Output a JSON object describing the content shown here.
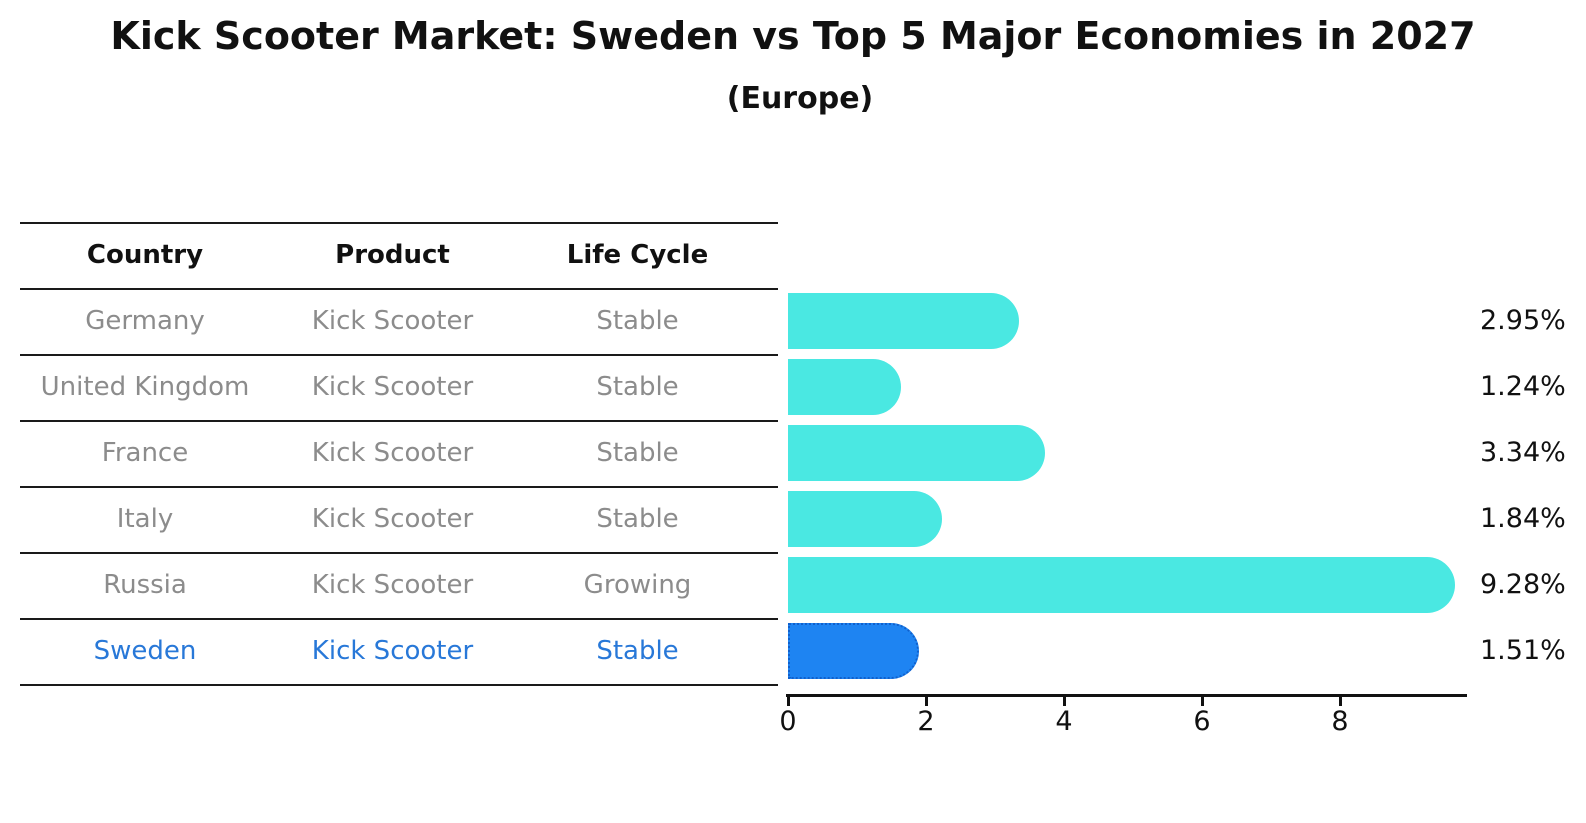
{
  "chart_data": {
    "type": "bar",
    "orientation": "horizontal",
    "title": "Kick Scooter Market: Sweden vs Top 5 Major Economies in 2027",
    "subtitle": "(Europe)",
    "categories": [
      "Germany",
      "United Kingdom",
      "France",
      "Italy",
      "Russia",
      "Sweden"
    ],
    "values": [
      2.95,
      1.24,
      3.34,
      1.84,
      9.28,
      1.51
    ],
    "value_labels": [
      "2.95%",
      "1.24%",
      "3.34%",
      "1.84%",
      "9.28%",
      "1.51%"
    ],
    "xlabel": "",
    "ylabel": "",
    "xlim": [
      0,
      9.8
    ],
    "xticks": [
      0,
      2,
      4,
      6,
      8
    ],
    "xtick_labels": [
      "0",
      "2",
      "4",
      "6",
      "8"
    ],
    "grid": false,
    "legend": false,
    "bar_color": "#4ae8e2",
    "highlight_index": 5,
    "highlight_bar_color": "#1e84f2",
    "highlight_border_color": "#1060cc",
    "axis_color": "#111111",
    "value_label_color": "#111111"
  },
  "table": {
    "headers": [
      "Country",
      "Product",
      "Life Cycle"
    ],
    "rows": [
      {
        "country": "Germany",
        "product": "Kick Scooter",
        "life_cycle": "Stable",
        "highlight": false
      },
      {
        "country": "United Kingdom",
        "product": "Kick Scooter",
        "life_cycle": "Stable",
        "highlight": false
      },
      {
        "country": "France",
        "product": "Kick Scooter",
        "life_cycle": "Stable",
        "highlight": false
      },
      {
        "country": "Italy",
        "product": "Kick Scooter",
        "life_cycle": "Stable",
        "highlight": false
      },
      {
        "country": "Russia",
        "product": "Kick Scooter",
        "life_cycle": "Growing",
        "highlight": false
      },
      {
        "country": "Sweden",
        "product": "Kick Scooter",
        "life_cycle": "Stable",
        "highlight": true
      }
    ],
    "header_color": "#111111",
    "text_color": "#8c8c8c",
    "highlight_text_color": "#2878d8",
    "line_color": "#1a1a1a"
  }
}
